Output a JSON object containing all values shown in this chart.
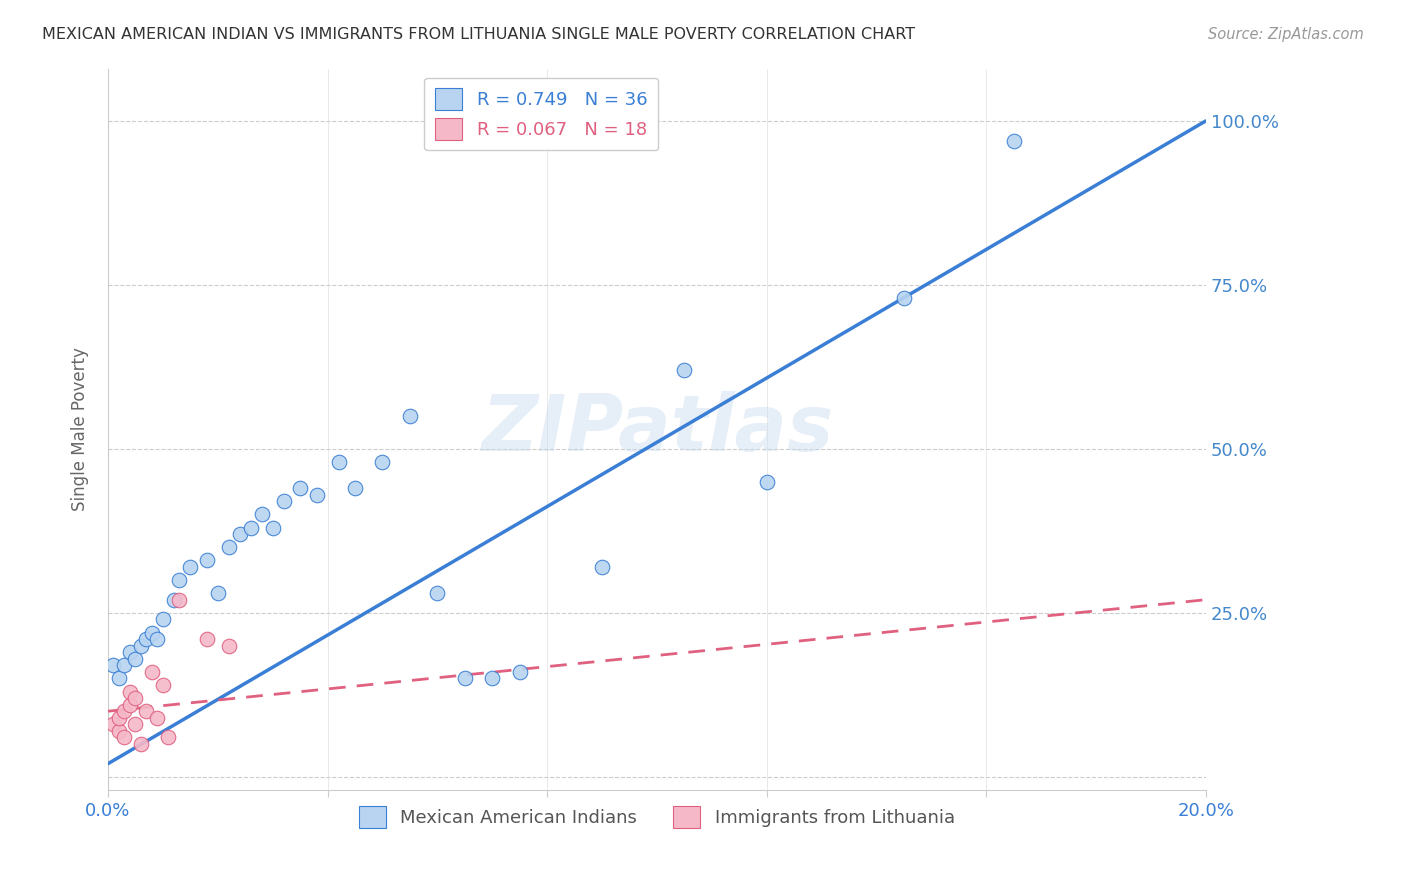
{
  "title": "MEXICAN AMERICAN INDIAN VS IMMIGRANTS FROM LITHUANIA SINGLE MALE POVERTY CORRELATION CHART",
  "source": "Source: ZipAtlas.com",
  "ylabel": "Single Male Poverty",
  "xlim": [
    0.0,
    0.2
  ],
  "ylim": [
    -0.02,
    1.08
  ],
  "yticks": [
    0.0,
    0.25,
    0.5,
    0.75,
    1.0
  ],
  "ytick_labels": [
    "",
    "25.0%",
    "50.0%",
    "75.0%",
    "100.0%"
  ],
  "xticks": [
    0.0,
    0.04,
    0.08,
    0.12,
    0.16,
    0.2
  ],
  "xtick_labels": [
    "0.0%",
    "",
    "",
    "",
    "",
    "20.0%"
  ],
  "watermark": "ZIPatlas",
  "blue_R": 0.749,
  "blue_N": 36,
  "pink_R": 0.067,
  "pink_N": 18,
  "blue_color": "#b8d4f0",
  "pink_color": "#f5b8c8",
  "blue_line_color": "#3a7fd5",
  "pink_line_color": "#e06080",
  "grid_color": "#cccccc",
  "right_axis_color": "#4488cc",
  "blue_x": [
    0.001,
    0.002,
    0.003,
    0.004,
    0.005,
    0.006,
    0.007,
    0.008,
    0.009,
    0.01,
    0.012,
    0.013,
    0.015,
    0.018,
    0.02,
    0.022,
    0.024,
    0.026,
    0.028,
    0.03,
    0.032,
    0.035,
    0.038,
    0.042,
    0.045,
    0.05,
    0.055,
    0.06,
    0.065,
    0.07,
    0.075,
    0.09,
    0.105,
    0.12,
    0.145,
    0.165
  ],
  "blue_y": [
    0.17,
    0.15,
    0.17,
    0.19,
    0.18,
    0.2,
    0.21,
    0.22,
    0.21,
    0.24,
    0.27,
    0.3,
    0.32,
    0.33,
    0.28,
    0.35,
    0.37,
    0.38,
    0.4,
    0.38,
    0.42,
    0.44,
    0.43,
    0.48,
    0.44,
    0.48,
    0.55,
    0.28,
    0.15,
    0.15,
    0.16,
    0.32,
    0.62,
    0.45,
    0.73,
    0.97
  ],
  "pink_x": [
    0.001,
    0.002,
    0.002,
    0.003,
    0.003,
    0.004,
    0.004,
    0.005,
    0.005,
    0.006,
    0.007,
    0.008,
    0.009,
    0.01,
    0.011,
    0.013,
    0.018,
    0.022
  ],
  "pink_y": [
    0.08,
    0.07,
    0.09,
    0.06,
    0.1,
    0.11,
    0.13,
    0.08,
    0.12,
    0.05,
    0.1,
    0.16,
    0.09,
    0.14,
    0.06,
    0.27,
    0.21,
    0.2
  ],
  "blue_line_x0": 0.0,
  "blue_line_y0": 0.02,
  "blue_line_x1": 0.2,
  "blue_line_y1": 1.0,
  "pink_line_x0": 0.0,
  "pink_line_y0": 0.1,
  "pink_line_x1": 0.2,
  "pink_line_y1": 0.27
}
